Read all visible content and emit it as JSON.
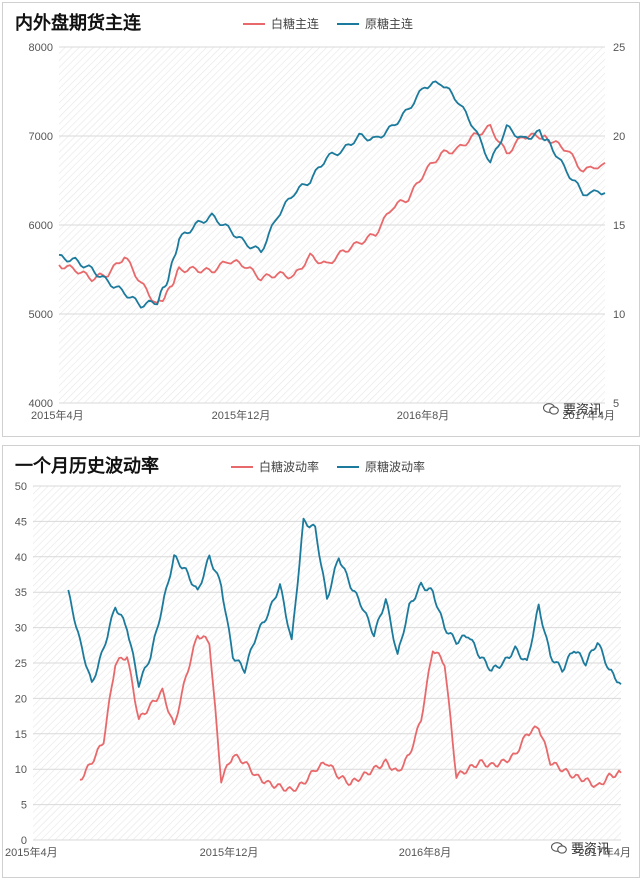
{
  "watermark": "要资讯",
  "colors": {
    "white_sugar": "#e8696b",
    "raw_sugar": "#1c7a9c"
  },
  "chart_data": [
    {
      "type": "line",
      "title": "内外盘期货主连",
      "x_ticks": [
        "2015年4月",
        "2015年12月",
        "2016年8月",
        "2017年4月"
      ],
      "y_left_ticks": [
        "4000",
        "5000",
        "6000",
        "7000",
        "8000"
      ],
      "y_right_ticks": [
        "5",
        "10",
        "15",
        "20",
        "25"
      ],
      "ylim_left": [
        4000,
        8000
      ],
      "ylim_right": [
        5,
        25
      ],
      "series": [
        {
          "name": "白糖主连",
          "axis": "left",
          "x": [
            0.0,
            0.03,
            0.06,
            0.09,
            0.12,
            0.15,
            0.18,
            0.2,
            0.22,
            0.25,
            0.28,
            0.31,
            0.34,
            0.37,
            0.4,
            0.43,
            0.46,
            0.49,
            0.52,
            0.55,
            0.58,
            0.61,
            0.64,
            0.67,
            0.7,
            0.73,
            0.76,
            0.79,
            0.82,
            0.85,
            0.88,
            0.9,
            0.93,
            0.96,
            1.0
          ],
          "y": [
            5550,
            5500,
            5400,
            5450,
            5650,
            5350,
            5100,
            5250,
            5500,
            5500,
            5480,
            5600,
            5550,
            5400,
            5450,
            5420,
            5650,
            5550,
            5700,
            5800,
            5900,
            6200,
            6300,
            6600,
            6800,
            6850,
            7000,
            7100,
            6800,
            7000,
            7000,
            6950,
            6850,
            6600,
            6700
          ]
        },
        {
          "name": "原糖主连",
          "axis": "right",
          "x": [
            0.0,
            0.03,
            0.06,
            0.09,
            0.12,
            0.15,
            0.18,
            0.2,
            0.22,
            0.25,
            0.28,
            0.31,
            0.34,
            0.37,
            0.4,
            0.43,
            0.46,
            0.49,
            0.52,
            0.55,
            0.58,
            0.61,
            0.64,
            0.67,
            0.7,
            0.73,
            0.76,
            0.79,
            0.82,
            0.85,
            0.88,
            0.9,
            0.93,
            0.96,
            1.0
          ],
          "y": [
            13.2,
            13.0,
            12.5,
            11.8,
            11.2,
            10.5,
            10.7,
            12.0,
            14.2,
            15.0,
            15.5,
            14.8,
            14.0,
            13.5,
            15.5,
            16.8,
            17.5,
            18.8,
            19.2,
            20.0,
            19.8,
            20.5,
            21.5,
            22.8,
            23.0,
            22.0,
            20.5,
            18.5,
            20.5,
            19.8,
            20.2,
            19.5,
            18.0,
            16.8,
            16.8
          ]
        }
      ]
    },
    {
      "type": "line",
      "title": "一个月历史波动率",
      "x_ticks": [
        "2015年4月",
        "2015年12月",
        "2016年8月",
        "2017年4月"
      ],
      "y_ticks": [
        "0",
        "5",
        "10",
        "15",
        "20",
        "25",
        "30",
        "35",
        "40",
        "45",
        "50"
      ],
      "ylim": [
        0,
        50
      ],
      "series": [
        {
          "name": "白糖波动率",
          "x": [
            0.08,
            0.1,
            0.12,
            0.14,
            0.16,
            0.18,
            0.2,
            0.22,
            0.24,
            0.26,
            0.28,
            0.3,
            0.32,
            0.34,
            0.36,
            0.38,
            0.4,
            0.42,
            0.44,
            0.46,
            0.48,
            0.5,
            0.52,
            0.54,
            0.56,
            0.58,
            0.6,
            0.62,
            0.64,
            0.66,
            0.68,
            0.7,
            0.72,
            0.74,
            0.76,
            0.78,
            0.8,
            0.82,
            0.84,
            0.86,
            0.88,
            0.9,
            0.92,
            0.94,
            0.96,
            0.98,
            1.0
          ],
          "y": [
            8.5,
            11,
            14,
            25,
            26,
            17,
            19,
            21,
            16,
            23,
            29,
            28,
            8.5,
            12,
            11,
            9,
            8,
            7.5,
            7,
            8,
            10,
            11,
            9,
            8,
            9,
            10,
            11,
            9.5,
            12,
            17,
            27,
            25,
            9,
            10,
            11,
            10.5,
            11,
            12,
            15,
            16,
            11,
            10,
            9,
            8.5,
            7.5,
            9,
            9.5
          ]
        },
        {
          "name": "原糖波动率",
          "x": [
            0.06,
            0.08,
            0.1,
            0.12,
            0.14,
            0.16,
            0.18,
            0.2,
            0.22,
            0.24,
            0.26,
            0.28,
            0.3,
            0.32,
            0.34,
            0.36,
            0.38,
            0.4,
            0.42,
            0.44,
            0.46,
            0.48,
            0.5,
            0.52,
            0.54,
            0.56,
            0.58,
            0.6,
            0.62,
            0.64,
            0.66,
            0.68,
            0.7,
            0.72,
            0.74,
            0.76,
            0.78,
            0.8,
            0.82,
            0.84,
            0.86,
            0.88,
            0.9,
            0.92,
            0.94,
            0.96,
            0.98,
            1.0
          ],
          "y": [
            35,
            28,
            22,
            27,
            33,
            30,
            22,
            26,
            33,
            40,
            38,
            35,
            40,
            36,
            26,
            24,
            29,
            32,
            36,
            28,
            45,
            44,
            34,
            40,
            36,
            33,
            29,
            34,
            26,
            33,
            36,
            35,
            30,
            28,
            29,
            26,
            24,
            25,
            27,
            25,
            33,
            26,
            24,
            27,
            25,
            28,
            24,
            22
          ]
        }
      ]
    }
  ]
}
